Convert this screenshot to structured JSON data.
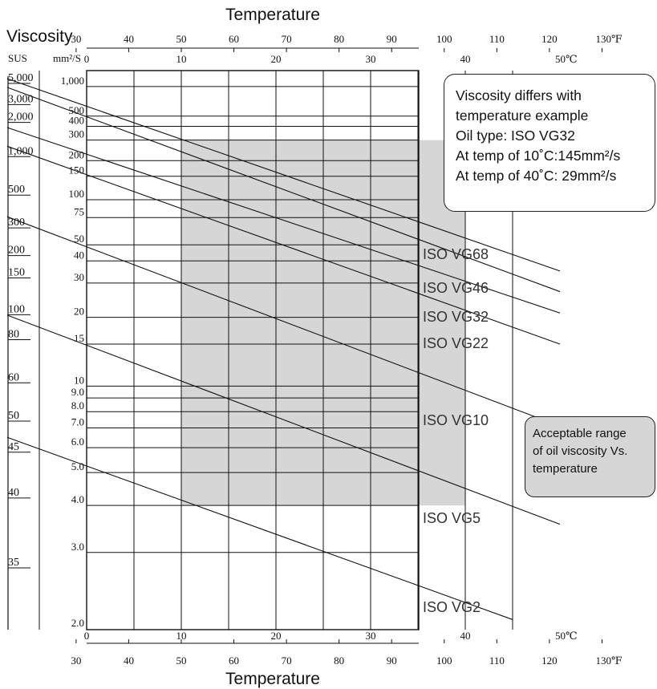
{
  "title_top": "Temperature",
  "title_bottom": "Temperature",
  "viscosity_title": "Viscosity",
  "left_units": {
    "sus": "SUS",
    "mm2s": "mm²/S"
  },
  "celsius_unit": "50℃",
  "fahrenheit_unit": "130℉",
  "example_box": {
    "lines": [
      "Viscosity differs with",
      "temperature example",
      "Oil type: ISO VG32",
      "At temp of 10˚C:145mm²/s",
      "At temp of 40˚C:  29mm²/s"
    ]
  },
  "range_box": {
    "lines": [
      "Acceptable range",
      "of oil viscosity Vs.",
      "temperature"
    ],
    "fill_color": "#d6d6d6"
  },
  "chart_data": {
    "type": "line",
    "x_axis_celsius": {
      "ticks": [
        0,
        10,
        20,
        30,
        40,
        50
      ],
      "range": [
        -8.4,
        50
      ]
    },
    "x_axis_fahrenheit": {
      "ticks": [
        30,
        40,
        50,
        60,
        70,
        80,
        90,
        100,
        110,
        120,
        130
      ]
    },
    "y_axis_mm2s": {
      "scale": "log-log",
      "range": [
        2.0,
        1500
      ],
      "gridlines": [
        1000,
        500,
        400,
        300,
        200,
        150,
        100,
        75,
        50,
        40,
        30,
        20,
        15,
        10,
        9,
        8,
        7,
        6,
        5,
        4,
        3
      ],
      "tick_labels": [
        "1,000",
        "500",
        "400",
        "300",
        "200",
        "150",
        "100",
        "75",
        "50",
        "40",
        "30",
        "20",
        "15",
        "10",
        "9.0",
        "8.0",
        "7.0",
        "6.0",
        "5.0",
        "4.0",
        "3.0",
        "2.0"
      ]
    },
    "y_axis_sus": {
      "tick_labels": [
        {
          "label": "5,000",
          "mm2s": 1080
        },
        {
          "label": "3,000",
          "mm2s": 650
        },
        {
          "label": "2,000",
          "mm2s": 435
        },
        {
          "label": "1,000",
          "mm2s": 216
        },
        {
          "label": "500",
          "mm2s": 108
        },
        {
          "label": "300",
          "mm2s": 64
        },
        {
          "label": "200",
          "mm2s": 43
        },
        {
          "label": "150",
          "mm2s": 32
        },
        {
          "label": "100",
          "mm2s": 20.6
        },
        {
          "label": "80",
          "mm2s": 15.7
        },
        {
          "label": "60",
          "mm2s": 10.3
        },
        {
          "label": "50",
          "mm2s": 7.4
        },
        {
          "label": "45",
          "mm2s": 5.8
        },
        {
          "label": "40",
          "mm2s": 4.2
        },
        {
          "label": "35",
          "mm2s": 2.75
        }
      ]
    },
    "series": [
      {
        "name": "ISO VG68",
        "points": [
          [
            -8.4,
            1220
          ],
          [
            50,
            35
          ]
        ]
      },
      {
        "name": "ISO VG46",
        "points": [
          [
            -8.4,
            980
          ],
          [
            50,
            27
          ]
        ]
      },
      {
        "name": "ISO VG32",
        "points": [
          [
            -8.4,
            390
          ],
          [
            50,
            21
          ]
        ]
      },
      {
        "name": "ISO VG22",
        "points": [
          [
            -8.4,
            265
          ],
          [
            50,
            15
          ]
        ]
      },
      {
        "name": "ISO VG10",
        "points": [
          [
            -8.4,
            76
          ],
          [
            50,
            7.1
          ]
        ]
      },
      {
        "name": "ISO VG5",
        "points": [
          [
            -8.4,
            20.5
          ],
          [
            50,
            3.55
          ]
        ]
      },
      {
        "name": "ISO VG2",
        "points": [
          [
            -8.4,
            6.5
          ],
          [
            45,
            2.1
          ]
        ]
      }
    ],
    "acceptable_range": {
      "celsius": [
        10,
        40
      ],
      "mm2s": [
        4,
        300
      ],
      "color": "#d6d6d6"
    }
  }
}
